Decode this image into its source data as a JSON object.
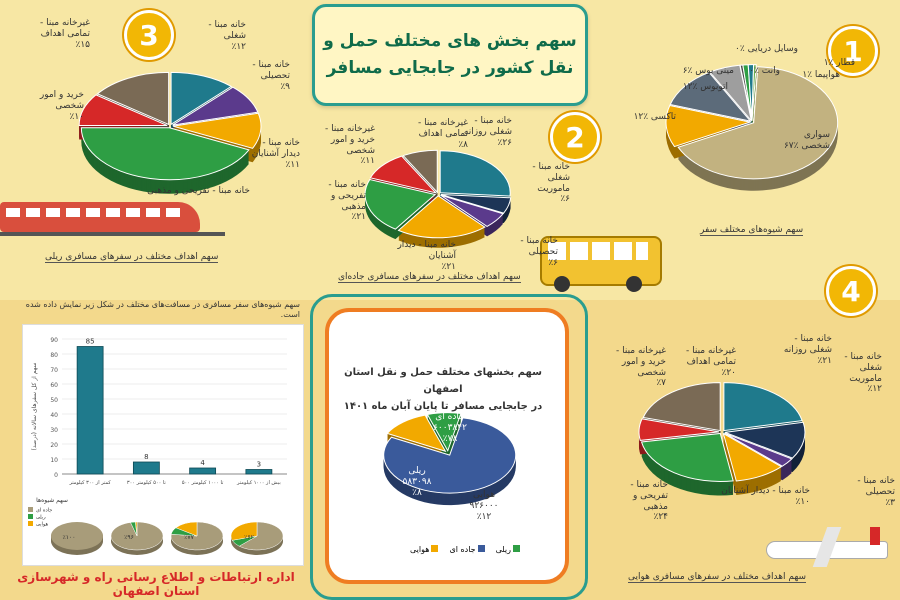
{
  "title": "سهم بخش های مختلف حمل و\nنقل کشور در جابجایی مسافر",
  "footer": "اداره ارتباطات و اطلاع رسانی راه و شهرسازی استان اصفهان",
  "colors": {
    "bg": "#f7e7a4",
    "teal": "#1f7a8c",
    "green": "#2e9e44",
    "red": "#d62828",
    "purple": "#5b3a8c",
    "orange": "#f2a900",
    "taupe": "#7a6a55",
    "navy": "#1d3557",
    "sand": "#c2b280"
  },
  "chart_data": [
    {
      "id": "1",
      "type": "pie",
      "number": "1",
      "caption": "سهم شیوه‌های مختلف سفر",
      "slices": [
        {
          "label": "سواری\nشخصی ٪۶۷",
          "value": 67,
          "color": "#c2b280"
        },
        {
          "label": "تاکسی ٪۱۲",
          "value": 12,
          "color": "#f2a900"
        },
        {
          "label": "اتوبوس ٪۱۲",
          "value": 12,
          "color": "#5c6b7a"
        },
        {
          "label": "مینی بوس ٪۶",
          "value": 6,
          "color": "#9e9e9e"
        },
        {
          "label": "وانت ٪۰",
          "value": 0.5,
          "color": "#4a4a4a"
        },
        {
          "label": "هواپیما ٪۱",
          "value": 1,
          "color": "#2e9e44"
        },
        {
          "label": "قطار ٪۱",
          "value": 1,
          "color": "#1f7a8c"
        },
        {
          "label": "وسایل دریایی ٪۰",
          "value": 0.5,
          "color": "#6ab04c"
        }
      ]
    },
    {
      "id": "2",
      "type": "pie",
      "number": "2",
      "caption": "سهم اهداف مختلف در سفرهای مسافری جاده‌ای",
      "slices": [
        {
          "label": "خانه مبنا -\nشغلی روزانه\n٪۲۶",
          "value": 26,
          "color": "#1f7a8c"
        },
        {
          "label": "خانه مبنا -\nشغلی\nماموریت\n٪۶",
          "value": 6,
          "color": "#1d3557"
        },
        {
          "label": "خانه مبنا -\nتحصیلی\n٪۶",
          "value": 6,
          "color": "#5b3a8c"
        },
        {
          "label": "خانه مبنا - دیدار آشنایان\n٪۲۱",
          "value": 21,
          "color": "#f2a900"
        },
        {
          "label": "خانه مبنا -\nتفریحی و\nمذهبی\n٪۲۱",
          "value": 21,
          "color": "#2e9e44"
        },
        {
          "label": "غیرخانه مبنا -\nخرید و امور\nشخصی\n٪۱۱",
          "value": 11,
          "color": "#d62828"
        },
        {
          "label": "غیرخانه مبنا -\nتمامی اهداف\n٪۸",
          "value": 8,
          "color": "#7a6a55"
        }
      ]
    },
    {
      "id": "3",
      "type": "pie",
      "number": "3",
      "caption": "سهم اهداف مختلف در سفرهای مسافری ریلی",
      "slices": [
        {
          "label": "خانه مبنا -\nشغلی\n٪۱۲",
          "value": 12,
          "color": "#1f7a8c"
        },
        {
          "label": "خانه مبنا -\nتحصیلی\n٪۹",
          "value": 9,
          "color": "#5b3a8c"
        },
        {
          "label": "خانه مبنا -\nدیدار آشنایان\n٪۱۱",
          "value": 11,
          "color": "#f2a900"
        },
        {
          "label": "خانه مبنا - تفریحی و مذهبی",
          "value": 43,
          "color": "#2e9e44"
        },
        {
          "label": "خرید و امور\nشخصی\n٪۱۰",
          "value": 10,
          "color": "#d62828"
        },
        {
          "label": "غیرخانه مبنا -\nتمامی اهداف\n٪۱۵",
          "value": 15,
          "color": "#7a6a55"
        }
      ]
    },
    {
      "id": "4",
      "type": "pie",
      "number": "4",
      "caption": "سهم اهداف مختلف در سفرهای مسافری هوایی",
      "slices": [
        {
          "label": "خانه مبنا -\nشغلی روزانه\n٪۲۱",
          "value": 21,
          "color": "#1f7a8c"
        },
        {
          "label": "خانه مبنا -\nشغلی\nماموریت\n٪۱۲",
          "value": 12,
          "color": "#1d3557"
        },
        {
          "label": "خانه مبنا -\nتحصیلی\n٪۳",
          "value": 3,
          "color": "#5b3a8c"
        },
        {
          "label": "خانه مبنا - دیدار آشنایان\n٪۱۰",
          "value": 10,
          "color": "#f2a900"
        },
        {
          "label": "خانه مبنا -\nتفریحی و\nمذهبی\n٪۲۴",
          "value": 24,
          "color": "#2e9e44"
        },
        {
          "label": "غیرخانه مبنا -\nخرید و امور\nشخصی\n٪۷",
          "value": 7,
          "color": "#d62828"
        },
        {
          "label": "غیرخانه مبنا -\nتمامی اهداف\n٪۲۰",
          "value": 20,
          "color": "#7a6a55"
        }
      ]
    },
    {
      "id": "5",
      "type": "bar",
      "number": "5",
      "caption": "سهم شیوه‌های سفر مسافری در مسافت‌های مختلف در شکل زیر نمایش داده شده است.",
      "categories": [
        "کمتر از ۳۰۰ کیلومتر",
        "۳۰۰ تا ۵۰۰ کیلومتر",
        "۵۰۰ تا ۱۰۰۰ کیلومتر",
        "بیش از ۱۰۰۰ کیلومتر"
      ],
      "values": [
        85,
        8,
        4,
        3
      ],
      "ylim": [
        0,
        90
      ],
      "yticks": [
        0,
        10,
        20,
        30,
        40,
        50,
        60,
        70,
        80,
        90
      ],
      "ylabel": "سهم از کل سفرهای سالانه (درصد)",
      "color": "#1f7a8c"
    },
    {
      "id": "center",
      "type": "pie",
      "title": "سهم بخشهای مختلف حمل و نقل استان اصفهان\nدر جابجایی مسافر تا پایان آبان ماه ۱۴۰۱",
      "slices": [
        {
          "label": "جاده ای\n۶۰۰۳۸۴۲\n٪۷۸",
          "value": 78,
          "color": "#3a5a9b"
        },
        {
          "label": "هوایی\n۹۲۶۰۰۰\n٪۱۲",
          "value": 12,
          "color": "#f2a900"
        },
        {
          "label": "ریلی\n۵۸۳۰۹۸\n٪۸",
          "value": 8,
          "color": "#2e9e44"
        }
      ],
      "legend": [
        "ریلی",
        "جاده ای",
        "هوایی"
      ]
    }
  ],
  "small_pies": {
    "legend_title": "سهم شیوه‌ها",
    "legend": [
      "جاده ای",
      "ریلی",
      "هوایی"
    ],
    "items": [
      {
        "label": "٪۱۰۰",
        "road": 100,
        "rail": 0,
        "air": 0
      },
      {
        "label": "٪۹۶",
        "road": 96,
        "rail": 3,
        "air": 1
      },
      {
        "label": "٪۷۷",
        "road": 77,
        "rail": 8,
        "air": 15
      },
      {
        "label": "٪۶۲",
        "road": 62,
        "rail": 8,
        "air": 30
      }
    ]
  }
}
